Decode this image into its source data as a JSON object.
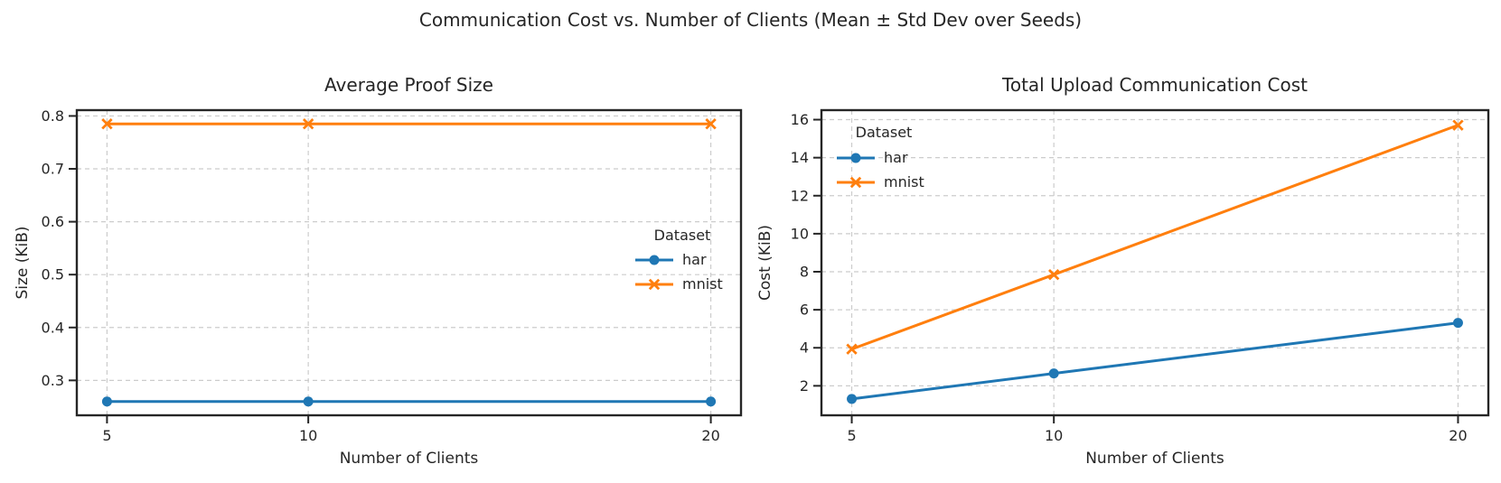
{
  "figure": {
    "suptitle": "Communication Cost vs. Number of Clients (Mean ± Std Dev over Seeds)",
    "colors": {
      "background": "#ffffff",
      "text": "#262626",
      "grid": "#cccccc",
      "spine": "#262626",
      "har": "#1f77b4",
      "mnist": "#ff7f0e"
    }
  },
  "chart_data": [
    {
      "type": "line",
      "title": "Average Proof Size",
      "xlabel": "Number of Clients",
      "ylabel": "Size (KiB)",
      "x": [
        5,
        10,
        20
      ],
      "xlim": [
        4.25,
        20.75
      ],
      "ylim": [
        0.234,
        0.811
      ],
      "xticks": {
        "values": [
          5,
          10,
          20
        ],
        "labels": [
          "5",
          "10",
          "20"
        ]
      },
      "yticks": {
        "values": [
          0.3,
          0.4,
          0.5,
          0.6,
          0.7,
          0.8
        ],
        "labels": [
          "0.3",
          "0.4",
          "0.5",
          "0.6",
          "0.7",
          "0.8"
        ]
      },
      "grid": true,
      "legend": {
        "title": "Dataset",
        "loc": "center right",
        "entries": [
          "har",
          "mnist"
        ]
      },
      "series": [
        {
          "name": "har",
          "color": "#1f77b4",
          "marker": "circle",
          "linestyle": "solid",
          "values": [
            0.26,
            0.26,
            0.26
          ]
        },
        {
          "name": "mnist",
          "color": "#ff7f0e",
          "marker": "x",
          "linestyle": "solid",
          "values": [
            0.785,
            0.785,
            0.785
          ]
        }
      ]
    },
    {
      "type": "line",
      "title": "Total Upload Communication Cost",
      "xlabel": "Number of Clients",
      "ylabel": "Cost (KiB)",
      "x": [
        5,
        10,
        20
      ],
      "xlim": [
        4.25,
        20.75
      ],
      "ylim": [
        0.45,
        16.5
      ],
      "xticks": {
        "values": [
          5,
          10,
          20
        ],
        "labels": [
          "5",
          "10",
          "20"
        ]
      },
      "yticks": {
        "values": [
          2,
          4,
          6,
          8,
          10,
          12,
          14,
          16
        ],
        "labels": [
          "2",
          "4",
          "6",
          "8",
          "10",
          "12",
          "14",
          "16"
        ]
      },
      "grid": true,
      "legend": {
        "title": "Dataset",
        "loc": "upper left",
        "entries": [
          "har",
          "mnist"
        ]
      },
      "series": [
        {
          "name": "har",
          "color": "#1f77b4",
          "marker": "circle",
          "linestyle": "solid",
          "values": [
            1.31,
            2.65,
            5.31
          ]
        },
        {
          "name": "mnist",
          "color": "#ff7f0e",
          "marker": "x",
          "linestyle": "solid",
          "values": [
            3.93,
            7.85,
            15.71
          ]
        }
      ]
    }
  ]
}
